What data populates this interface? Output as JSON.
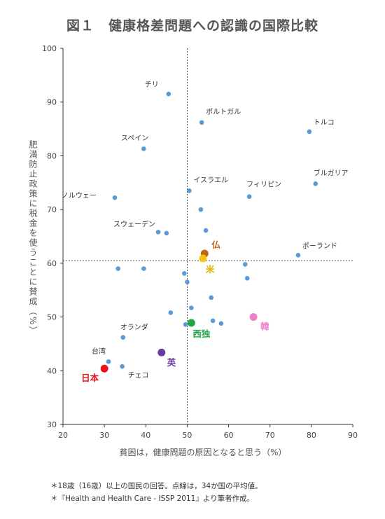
{
  "title": "図１　健康格差問題への認識の国際比較",
  "notes": [
    "＊18歳（16歳）以上の国民の回答。点線は，34か国の平均値。",
    "＊『Health and Health Care - ISSP 2011』より筆者作成。"
  ],
  "chart_data": {
    "type": "scatter",
    "title": "図１　健康格差問題への認識の国際比較",
    "xlabel": "貧困は，健康問題の原因となると思う（%）",
    "ylabel": "肥満防止政策に税金を使うことに賛成（%）",
    "xlim": [
      20,
      90
    ],
    "ylim": [
      30,
      100
    ],
    "xticks": [
      20,
      30,
      40,
      50,
      60,
      70,
      80,
      90
    ],
    "yticks": [
      30,
      40,
      50,
      60,
      70,
      80,
      90,
      100
    ],
    "grid": false,
    "mean_lines": {
      "x": 50,
      "y": 60.5
    },
    "default_color": "#5b9bd5",
    "points": [
      {
        "x": 45.5,
        "y": 91.5,
        "label": "チリ"
      },
      {
        "x": 53.5,
        "y": 86.2,
        "label": "ポルトガル"
      },
      {
        "x": 79.5,
        "y": 84.5,
        "label": "トルコ"
      },
      {
        "x": 39.5,
        "y": 81.3,
        "label": "スペイン"
      },
      {
        "x": 50.5,
        "y": 73.5,
        "label": "イスラエル"
      },
      {
        "x": 65.0,
        "y": 72.4,
        "label": "フィリピン"
      },
      {
        "x": 81.0,
        "y": 74.8,
        "label": "ブルガリア"
      },
      {
        "x": 32.5,
        "y": 72.2,
        "label": "ノルウェー"
      },
      {
        "x": 43.0,
        "y": 65.8,
        "label": "スウェーデン"
      },
      {
        "x": 45.0,
        "y": 65.6
      },
      {
        "x": 53.3,
        "y": 70.0
      },
      {
        "x": 54.5,
        "y": 66.1
      },
      {
        "x": 76.8,
        "y": 61.5,
        "label": "ポーランド"
      },
      {
        "x": 54.2,
        "y": 61.8,
        "label": "仏",
        "highlight": true,
        "color": "#c0651a"
      },
      {
        "x": 53.8,
        "y": 60.9,
        "label": "米",
        "highlight": true,
        "color": "#f5c518"
      },
      {
        "x": 33.3,
        "y": 59.0
      },
      {
        "x": 39.5,
        "y": 59.0
      },
      {
        "x": 49.3,
        "y": 58.1
      },
      {
        "x": 50.0,
        "y": 56.5
      },
      {
        "x": 64.0,
        "y": 59.8
      },
      {
        "x": 64.5,
        "y": 57.2
      },
      {
        "x": 55.8,
        "y": 53.6
      },
      {
        "x": 51.0,
        "y": 51.7
      },
      {
        "x": 46.0,
        "y": 50.8
      },
      {
        "x": 49.6,
        "y": 48.6
      },
      {
        "x": 51.0,
        "y": 48.9,
        "label": "西独",
        "highlight": true,
        "color": "#22a548"
      },
      {
        "x": 56.2,
        "y": 49.3
      },
      {
        "x": 58.2,
        "y": 48.8
      },
      {
        "x": 66.0,
        "y": 50.0,
        "label": "韓",
        "highlight": true,
        "color": "#ee82c8"
      },
      {
        "x": 34.5,
        "y": 46.2,
        "label": "オランダ"
      },
      {
        "x": 43.8,
        "y": 43.4,
        "label": "英",
        "highlight": true,
        "color": "#6a3d9a"
      },
      {
        "x": 31.0,
        "y": 41.7,
        "label": "台湾"
      },
      {
        "x": 30.0,
        "y": 40.4,
        "label": "日本",
        "highlight": true,
        "color": "#e8141a"
      },
      {
        "x": 34.3,
        "y": 40.8,
        "label": "チェコ"
      }
    ]
  }
}
